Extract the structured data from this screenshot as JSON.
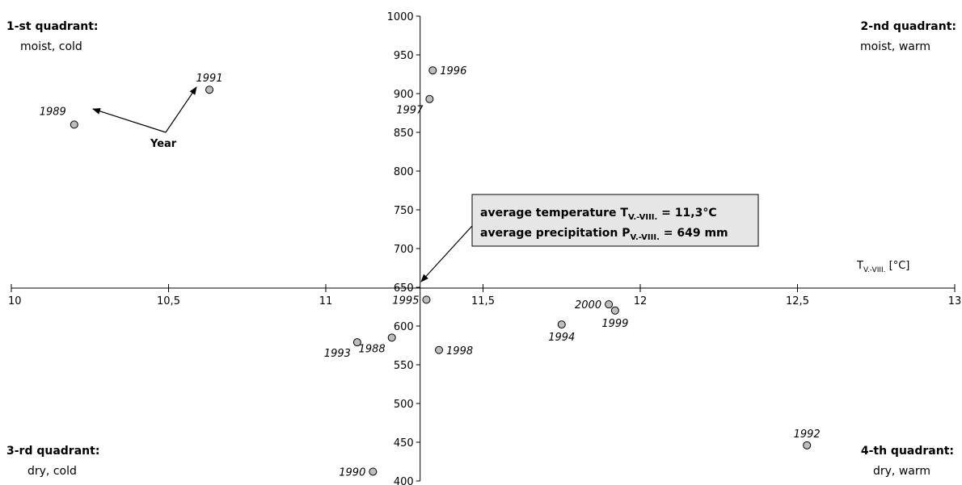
{
  "chart_data": {
    "type": "scatter",
    "x_axis": {
      "label_main": "T",
      "label_sub": "V.-VIII.",
      "label_unit": " [°C]",
      "min": 10,
      "max": 13,
      "ticks": [
        10,
        10.5,
        11,
        11.5,
        12,
        12.5,
        13
      ],
      "tick_labels": [
        "10",
        "10,5",
        "11",
        "11,5",
        "12",
        "12,5",
        "13"
      ],
      "crosses_at_y": 649
    },
    "y_axis": {
      "min": 400,
      "max": 1000,
      "ticks": [
        400,
        450,
        500,
        550,
        600,
        650,
        700,
        750,
        800,
        850,
        900,
        950,
        1000
      ],
      "tick_labels": [
        "400",
        "450",
        "500",
        "550",
        "600",
        "650",
        "700",
        "750",
        "800",
        "850",
        "900",
        "950",
        "1000"
      ],
      "crosses_at_x": 11.3
    },
    "points": [
      {
        "label": "1988",
        "x": 11.21,
        "y": 585,
        "label_side": "below-left"
      },
      {
        "label": "1989",
        "x": 10.2,
        "y": 860,
        "label_side": "above-left"
      },
      {
        "label": "1990",
        "x": 11.15,
        "y": 412,
        "label_side": "left"
      },
      {
        "label": "1991",
        "x": 10.63,
        "y": 905,
        "label_side": "above"
      },
      {
        "label": "1992",
        "x": 12.53,
        "y": 446,
        "label_side": "above"
      },
      {
        "label": "1993",
        "x": 11.1,
        "y": 579,
        "label_side": "below-left"
      },
      {
        "label": "1994",
        "x": 11.75,
        "y": 602,
        "label_side": "below"
      },
      {
        "label": "1995",
        "x": 11.32,
        "y": 634,
        "label_side": "left"
      },
      {
        "label": "1996",
        "x": 11.34,
        "y": 930,
        "label_side": "right"
      },
      {
        "label": "1997",
        "x": 11.33,
        "y": 893,
        "label_side": "below-left"
      },
      {
        "label": "1998",
        "x": 11.36,
        "y": 569,
        "label_side": "right"
      },
      {
        "label": "1999",
        "x": 11.92,
        "y": 620,
        "label_side": "below"
      },
      {
        "label": "2000",
        "x": 11.9,
        "y": 628,
        "label_side": "left"
      }
    ],
    "annotation_box": {
      "line1_prefix": "average temperature T",
      "line1_sub": "V.-VIII.",
      "line1_suffix": " = 11,3°C",
      "line2_prefix": "average precipitation P",
      "line2_sub": "V.-VIII.",
      "line2_suffix": " = 649 mm",
      "points_to": {
        "x": 11.3,
        "y": 649
      }
    },
    "year_annotation": {
      "label": "Year",
      "points_to": [
        "1989",
        "1991"
      ]
    },
    "quadrants": [
      {
        "title": "1-st quadrant:",
        "subtitle": "moist, cold",
        "position": "top-left"
      },
      {
        "title": "2-nd quadrant:",
        "subtitle": "moist, warm",
        "position": "top-right"
      },
      {
        "title": "3-rd quadrant:",
        "subtitle": "dry, cold",
        "position": "bottom-left"
      },
      {
        "title": "4-th quadrant:",
        "subtitle": "dry, warm",
        "position": "bottom-right"
      }
    ],
    "grid": false,
    "colors": {
      "point_fill": "#bdbdbd",
      "point_stroke": "#000000",
      "box_fill": "#e6e6e6"
    }
  }
}
